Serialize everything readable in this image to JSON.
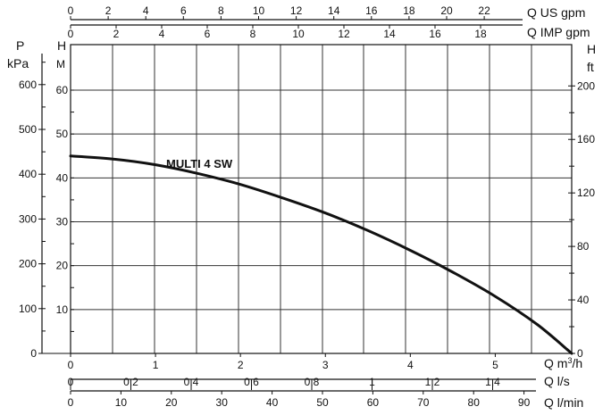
{
  "chart_data": {
    "type": "line",
    "series": [
      {
        "name": "MULTI 4 SW",
        "x": [
          0,
          0.5,
          1,
          1.5,
          2,
          2.5,
          3,
          3.5,
          4,
          4.5,
          5,
          5.5,
          5.9
        ],
        "y": [
          45,
          44.3,
          43,
          41,
          38.5,
          35.4,
          32,
          28,
          23.5,
          18.5,
          13,
          6.5,
          0
        ]
      }
    ],
    "x_axis": {
      "label": "Q m³/h",
      "range": [
        0,
        5.9
      ],
      "ticks": [
        "0",
        "1",
        "2",
        "3",
        "4",
        "5"
      ]
    },
    "y_axis_left": {
      "label": "H",
      "unit": "M",
      "range": [
        0,
        65
      ],
      "ticks": [
        "10",
        "20",
        "30",
        "40",
        "50",
        "60"
      ]
    },
    "pressure_axis": {
      "label": "P",
      "unit": "kPa",
      "ticks": [
        "0",
        "100",
        "200",
        "300",
        "400",
        "500",
        "600"
      ]
    },
    "y_axis_right": {
      "label": "H",
      "unit": "ft",
      "ticks": [
        "0",
        "40",
        "80",
        "120",
        "160",
        "200"
      ]
    },
    "top_axis_us": {
      "label": "Q US gpm",
      "ticks": [
        "0",
        "2",
        "4",
        "6",
        "8",
        "10",
        "12",
        "14",
        "16",
        "18",
        "20",
        "22"
      ]
    },
    "top_axis_imp": {
      "label": "Q IMP gpm",
      "ticks": [
        "0",
        "2",
        "4",
        "6",
        "8",
        "10",
        "12",
        "14",
        "16",
        "18"
      ]
    },
    "bottom_axis_ls": {
      "label": "Q l/s",
      "ticks": [
        "0",
        "0,2",
        "0,4",
        "0,6",
        "0,8",
        "1",
        "1,2",
        "1,4"
      ]
    },
    "bottom_axis_lmin": {
      "label": "Q l/min",
      "ticks": [
        "0",
        "10",
        "20",
        "30",
        "40",
        "50",
        "60",
        "70",
        "80",
        "90"
      ]
    },
    "grid": true
  },
  "labels": {
    "top_us": "Q US gpm",
    "top_imp": "Q IMP gpm",
    "p_symbol": "P",
    "p_unit": "kPa",
    "h_left_symbol": "H",
    "h_left_unit": "M",
    "h_right_symbol": "H",
    "h_right_unit": "ft",
    "x_main": "Q m",
    "x_main_sup": "3",
    "x_main_tail": "/h",
    "x_ls": "Q l/s",
    "x_lmin": "Q l/min",
    "curve": "MULTI 4 SW"
  },
  "colors": {
    "line": "#111111",
    "grid": "#333333",
    "background": "#ffffff"
  }
}
